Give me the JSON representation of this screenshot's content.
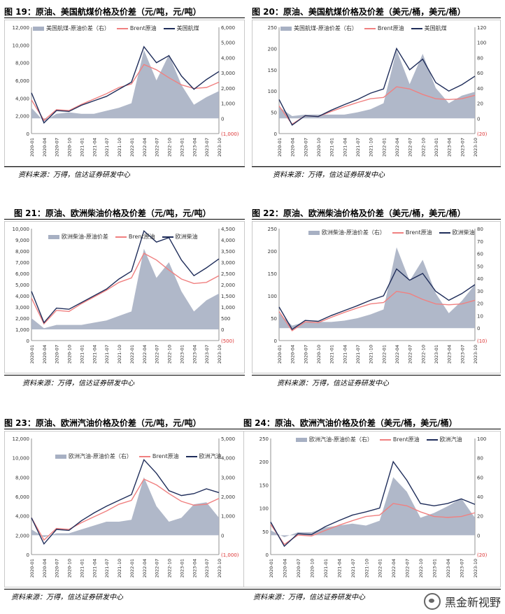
{
  "panels": [
    {
      "title": "图 19：原油、美国航煤价格及价差（元/吨，元/吨）",
      "source": "资料来源：万得，信达证券研发中心",
      "legend": [
        {
          "name": "美国航煤-原油价差（右）",
          "kind": "area"
        },
        {
          "name": "Brent原油",
          "kind": "line",
          "color": "#f08080"
        },
        {
          "name": "美国航煤",
          "kind": "line",
          "color": "#1f2d5a"
        }
      ],
      "left_ticks": [
        "0",
        "2,000",
        "4,000",
        "6,000",
        "8,000",
        "10,000",
        "12,000"
      ],
      "right_ticks": [
        "(1,000)",
        "0",
        "1,000",
        "2,000",
        "3,000",
        "4,000",
        "5,000",
        "6,000"
      ]
    },
    {
      "title": "图 20：原油、美国航煤价格及价差（美元/桶，美元/桶）",
      "source": "资料来源：万得，信达证券研发中心",
      "legend": [
        {
          "name": "美国航煤-原油价差（右）",
          "kind": "area"
        },
        {
          "name": "Brent原油",
          "kind": "line",
          "color": "#f08080"
        },
        {
          "name": "美国航煤",
          "kind": "line",
          "color": "#1f2d5a"
        }
      ],
      "left_ticks": [
        "0",
        "50",
        "100",
        "150",
        "200",
        "250"
      ],
      "right_ticks": [
        "(20)",
        "0",
        "20",
        "40",
        "60",
        "80",
        "100",
        "120"
      ]
    },
    {
      "title": "图 21：原油、欧洲柴油价格及价差（元/吨，元/吨）",
      "source": "资料来源：万得，信达证券研发中心",
      "legend": [
        {
          "name": "欧洲柴油-原油价差",
          "kind": "area"
        },
        {
          "name": "Brent原油",
          "kind": "line",
          "color": "#f08080"
        },
        {
          "name": "欧洲柴油",
          "kind": "line",
          "color": "#1f2d5a"
        }
      ],
      "left_ticks": [
        "0",
        "1,000",
        "2,000",
        "3,000",
        "4,000",
        "5,000",
        "6,000",
        "7,000",
        "8,000",
        "9,000",
        "10,000"
      ],
      "right_ticks": [
        "(500)",
        "0",
        "500",
        "1,000",
        "1,500",
        "2,000",
        "2,500",
        "3,000",
        "3,500",
        "4,000",
        "4,500"
      ]
    },
    {
      "title": "图 22：原油、欧洲柴油价格及价差（美元/桶，美元/桶）",
      "source": "资料来源：万得，信达证券研发中心",
      "legend": [
        {
          "name": "欧洲柴油-原油价差（右）",
          "kind": "area"
        },
        {
          "name": "Brent原油",
          "kind": "line",
          "color": "#f08080"
        },
        {
          "name": "欧洲柴油",
          "kind": "line",
          "color": "#1f2d5a"
        }
      ],
      "left_ticks": [
        "0",
        "50",
        "100",
        "150",
        "200",
        "250"
      ],
      "right_ticks": [
        "(10)",
        "0",
        "10",
        "20",
        "30",
        "40",
        "50",
        "60",
        "70",
        "80"
      ]
    },
    {
      "title": "图 23：原油、欧洲汽油价格及价差（元/吨，元/吨）",
      "source": "资料来源：万得，信达证券研发中心",
      "legend": [
        {
          "name": "欧洲汽油-原油价差（右）",
          "kind": "area"
        },
        {
          "name": "Brent原油",
          "kind": "line",
          "color": "#f08080"
        },
        {
          "name": "欧洲汽油",
          "kind": "line",
          "color": "#1f2d5a"
        }
      ],
      "left_ticks": [
        "0",
        "2,000",
        "4,000",
        "6,000",
        "8,000",
        "10,000",
        "12,000"
      ],
      "right_ticks": [
        "(1,000)",
        "0",
        "1,000",
        "2,000",
        "3,000",
        "4,000",
        "5,000"
      ]
    },
    {
      "title": "图 24：原油、欧洲汽油价格及价差（美元/桶，美元/桶）",
      "source": "资料来源：万得，信达证券研发中心",
      "legend": [
        {
          "name": "欧洲汽油-原油价差（右）",
          "kind": "area"
        },
        {
          "name": "Brent原油",
          "kind": "line",
          "color": "#f08080"
        },
        {
          "name": "欧洲汽油",
          "kind": "line",
          "color": "#1f2d5a"
        }
      ],
      "left_ticks": [
        "0",
        "50",
        "100",
        "150",
        "200",
        "250"
      ],
      "right_ticks": [
        "(20)",
        "0",
        "20",
        "40",
        "60",
        "80",
        "100"
      ]
    }
  ],
  "x_ticks": [
    "2020-01",
    "2020-04",
    "2020-07",
    "2020-10",
    "2021-01",
    "2021-04",
    "2021-07",
    "2021-10",
    "2022-01",
    "2022-04",
    "2022-07",
    "2022-10",
    "2023-01",
    "2023-04",
    "2023-07",
    "2023-10"
  ],
  "chart_data": [
    {
      "type": "line",
      "x": [
        "2020-01",
        "2020-04",
        "2020-07",
        "2020-10",
        "2021-01",
        "2021-04",
        "2021-07",
        "2021-10",
        "2022-01",
        "2022-04",
        "2022-07",
        "2022-10",
        "2023-01",
        "2023-04",
        "2023-07",
        "2023-10"
      ],
      "ylim": [
        0,
        12000
      ],
      "y2lim": [
        -1000,
        6000
      ],
      "series": [
        {
          "name": "Brent原油",
          "axis": "left",
          "values": [
            3800,
            1500,
            2700,
            2600,
            3300,
            3900,
            4500,
            5200,
            5600,
            7800,
            7200,
            6300,
            5500,
            5100,
            5200,
            5800
          ]
        },
        {
          "name": "美国航煤",
          "axis": "left",
          "values": [
            4600,
            1200,
            2600,
            2500,
            3200,
            3700,
            4200,
            5000,
            5800,
            9800,
            8000,
            8800,
            6500,
            5000,
            6100,
            7000
          ]
        },
        {
          "name": "美国航煤-原油价差（右）",
          "axis": "right",
          "values": [
            700,
            -200,
            300,
            400,
            300,
            300,
            500,
            700,
            1000,
            4500,
            2500,
            4200,
            2200,
            900,
            1400,
            1800
          ]
        }
      ]
    },
    {
      "type": "line",
      "x": [
        "2020-01",
        "2020-04",
        "2020-07",
        "2020-10",
        "2021-01",
        "2021-04",
        "2021-07",
        "2021-10",
        "2022-01",
        "2022-04",
        "2022-07",
        "2022-10",
        "2023-01",
        "2023-04",
        "2023-07",
        "2023-10"
      ],
      "ylim": [
        0,
        250
      ],
      "y2lim": [
        -20,
        120
      ],
      "series": [
        {
          "name": "Brent原油",
          "axis": "left",
          "values": [
            65,
            22,
            42,
            40,
            52,
            63,
            73,
            82,
            85,
            110,
            105,
            92,
            82,
            80,
            82,
            90
          ]
        },
        {
          "name": "美国航煤",
          "axis": "left",
          "values": [
            80,
            20,
            42,
            40,
            55,
            68,
            80,
            95,
            105,
            200,
            150,
            175,
            120,
            100,
            115,
            135
          ]
        },
        {
          "name": "美国航煤-原油价差（右）",
          "axis": "right",
          "values": [
            15,
            3,
            5,
            5,
            5,
            5,
            8,
            12,
            20,
            90,
            45,
            85,
            40,
            20,
            30,
            35
          ]
        }
      ]
    },
    {
      "type": "line",
      "x": [
        "2020-01",
        "2020-04",
        "2020-07",
        "2020-10",
        "2021-01",
        "2021-04",
        "2021-07",
        "2021-10",
        "2022-01",
        "2022-04",
        "2022-07",
        "2022-10",
        "2023-01",
        "2023-04",
        "2023-07",
        "2023-10"
      ],
      "ylim": [
        0,
        10000
      ],
      "y2lim": [
        -500,
        4500
      ],
      "series": [
        {
          "name": "Brent原油",
          "axis": "left",
          "values": [
            3800,
            1500,
            2700,
            2600,
            3300,
            3900,
            4500,
            5200,
            5600,
            7800,
            7200,
            6300,
            5500,
            5100,
            5200,
            5800
          ]
        },
        {
          "name": "欧洲柴油",
          "axis": "left",
          "values": [
            4400,
            1600,
            2900,
            2800,
            3400,
            4000,
            4600,
            5500,
            6200,
            9800,
            8800,
            9200,
            7200,
            5800,
            6500,
            7300
          ]
        },
        {
          "name": "欧洲柴油-原油价差",
          "axis": "right",
          "values": [
            500,
            50,
            200,
            200,
            200,
            300,
            400,
            600,
            800,
            3600,
            2300,
            3000,
            1700,
            800,
            1300,
            1600
          ]
        }
      ]
    },
    {
      "type": "line",
      "x": [
        "2020-01",
        "2020-04",
        "2020-07",
        "2020-10",
        "2021-01",
        "2021-04",
        "2021-07",
        "2021-10",
        "2022-01",
        "2022-04",
        "2022-07",
        "2022-10",
        "2023-01",
        "2023-04",
        "2023-07",
        "2023-10"
      ],
      "ylim": [
        0,
        250
      ],
      "y2lim": [
        -10,
        80
      ],
      "series": [
        {
          "name": "Brent原油",
          "axis": "left",
          "values": [
            65,
            22,
            42,
            40,
            52,
            63,
            73,
            82,
            85,
            110,
            105,
            92,
            82,
            80,
            82,
            90
          ]
        },
        {
          "name": "欧洲柴油",
          "axis": "left",
          "values": [
            75,
            25,
            45,
            43,
            56,
            67,
            78,
            90,
            100,
            160,
            135,
            150,
            110,
            90,
            105,
            125
          ]
        },
        {
          "name": "欧洲柴油-原油价差（右）",
          "axis": "right",
          "values": [
            12,
            2,
            5,
            5,
            5,
            6,
            8,
            11,
            15,
            65,
            38,
            55,
            28,
            12,
            22,
            35
          ]
        }
      ]
    },
    {
      "type": "line",
      "x": [
        "2020-01",
        "2020-04",
        "2020-07",
        "2020-10",
        "2021-01",
        "2021-04",
        "2021-07",
        "2021-10",
        "2022-01",
        "2022-04",
        "2022-07",
        "2022-10",
        "2023-01",
        "2023-04",
        "2023-07",
        "2023-10"
      ],
      "ylim": [
        0,
        12000
      ],
      "y2lim": [
        -1000,
        5000
      ],
      "series": [
        {
          "name": "Brent原油",
          "axis": "left",
          "values": [
            3800,
            1500,
            2700,
            2600,
            3300,
            3900,
            4500,
            5200,
            5600,
            7800,
            7200,
            6300,
            5500,
            5100,
            5200,
            5800
          ]
        },
        {
          "name": "欧洲汽油",
          "axis": "left",
          "values": [
            3800,
            1100,
            2600,
            2500,
            3500,
            4300,
            5000,
            5600,
            6200,
            9800,
            8400,
            6600,
            6100,
            6300,
            6800,
            6400
          ]
        },
        {
          "name": "欧洲汽油-原油价差（右）",
          "axis": "right",
          "values": [
            300,
            -100,
            100,
            100,
            300,
            500,
            700,
            700,
            800,
            3000,
            1500,
            700,
            900,
            1600,
            1700,
            900
          ]
        }
      ]
    },
    {
      "type": "line",
      "x": [
        "2020-01",
        "2020-04",
        "2020-07",
        "2020-10",
        "2021-01",
        "2021-04",
        "2021-07",
        "2021-10",
        "2022-01",
        "2022-04",
        "2022-07",
        "2022-10",
        "2023-01",
        "2023-04",
        "2023-07",
        "2023-10"
      ],
      "ylim": [
        0,
        250
      ],
      "y2lim": [
        -20,
        100
      ],
      "series": [
        {
          "name": "Brent原油",
          "axis": "left",
          "values": [
            65,
            22,
            42,
            40,
            52,
            63,
            73,
            82,
            85,
            110,
            105,
            92,
            82,
            80,
            82,
            90
          ]
        },
        {
          "name": "欧洲汽油",
          "axis": "left",
          "values": [
            70,
            18,
            45,
            43,
            60,
            73,
            85,
            92,
            100,
            200,
            160,
            110,
            105,
            110,
            120,
            108
          ]
        },
        {
          "name": "欧洲汽油-原油价差（右）",
          "axis": "right",
          "values": [
            5,
            -2,
            3,
            3,
            8,
            10,
            12,
            10,
            15,
            60,
            45,
            18,
            23,
            30,
            38,
            18
          ]
        }
      ]
    }
  ],
  "watermark": "黑金新视野",
  "colors": {
    "area": "#a7b0c3",
    "brent": "#f08080",
    "product": "#1f2d5a"
  }
}
